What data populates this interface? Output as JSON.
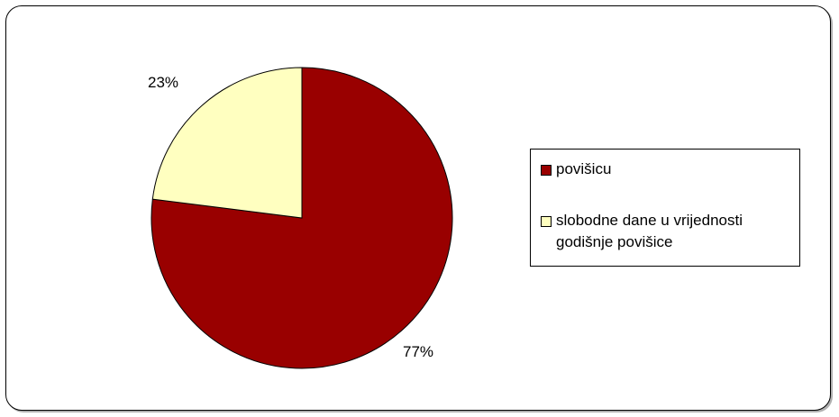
{
  "chart_data": {
    "type": "pie",
    "slices": [
      {
        "name": "povišicu",
        "value": 77,
        "label": "77%",
        "color": "#990000"
      },
      {
        "name": "slobodne dane u vrijednosti godišnje povišice",
        "value": 23,
        "label": "23%",
        "color": "#FFFFC0"
      }
    ],
    "legend_position": "right",
    "start_angle": "12 o'clock",
    "direction": "clockwise"
  }
}
